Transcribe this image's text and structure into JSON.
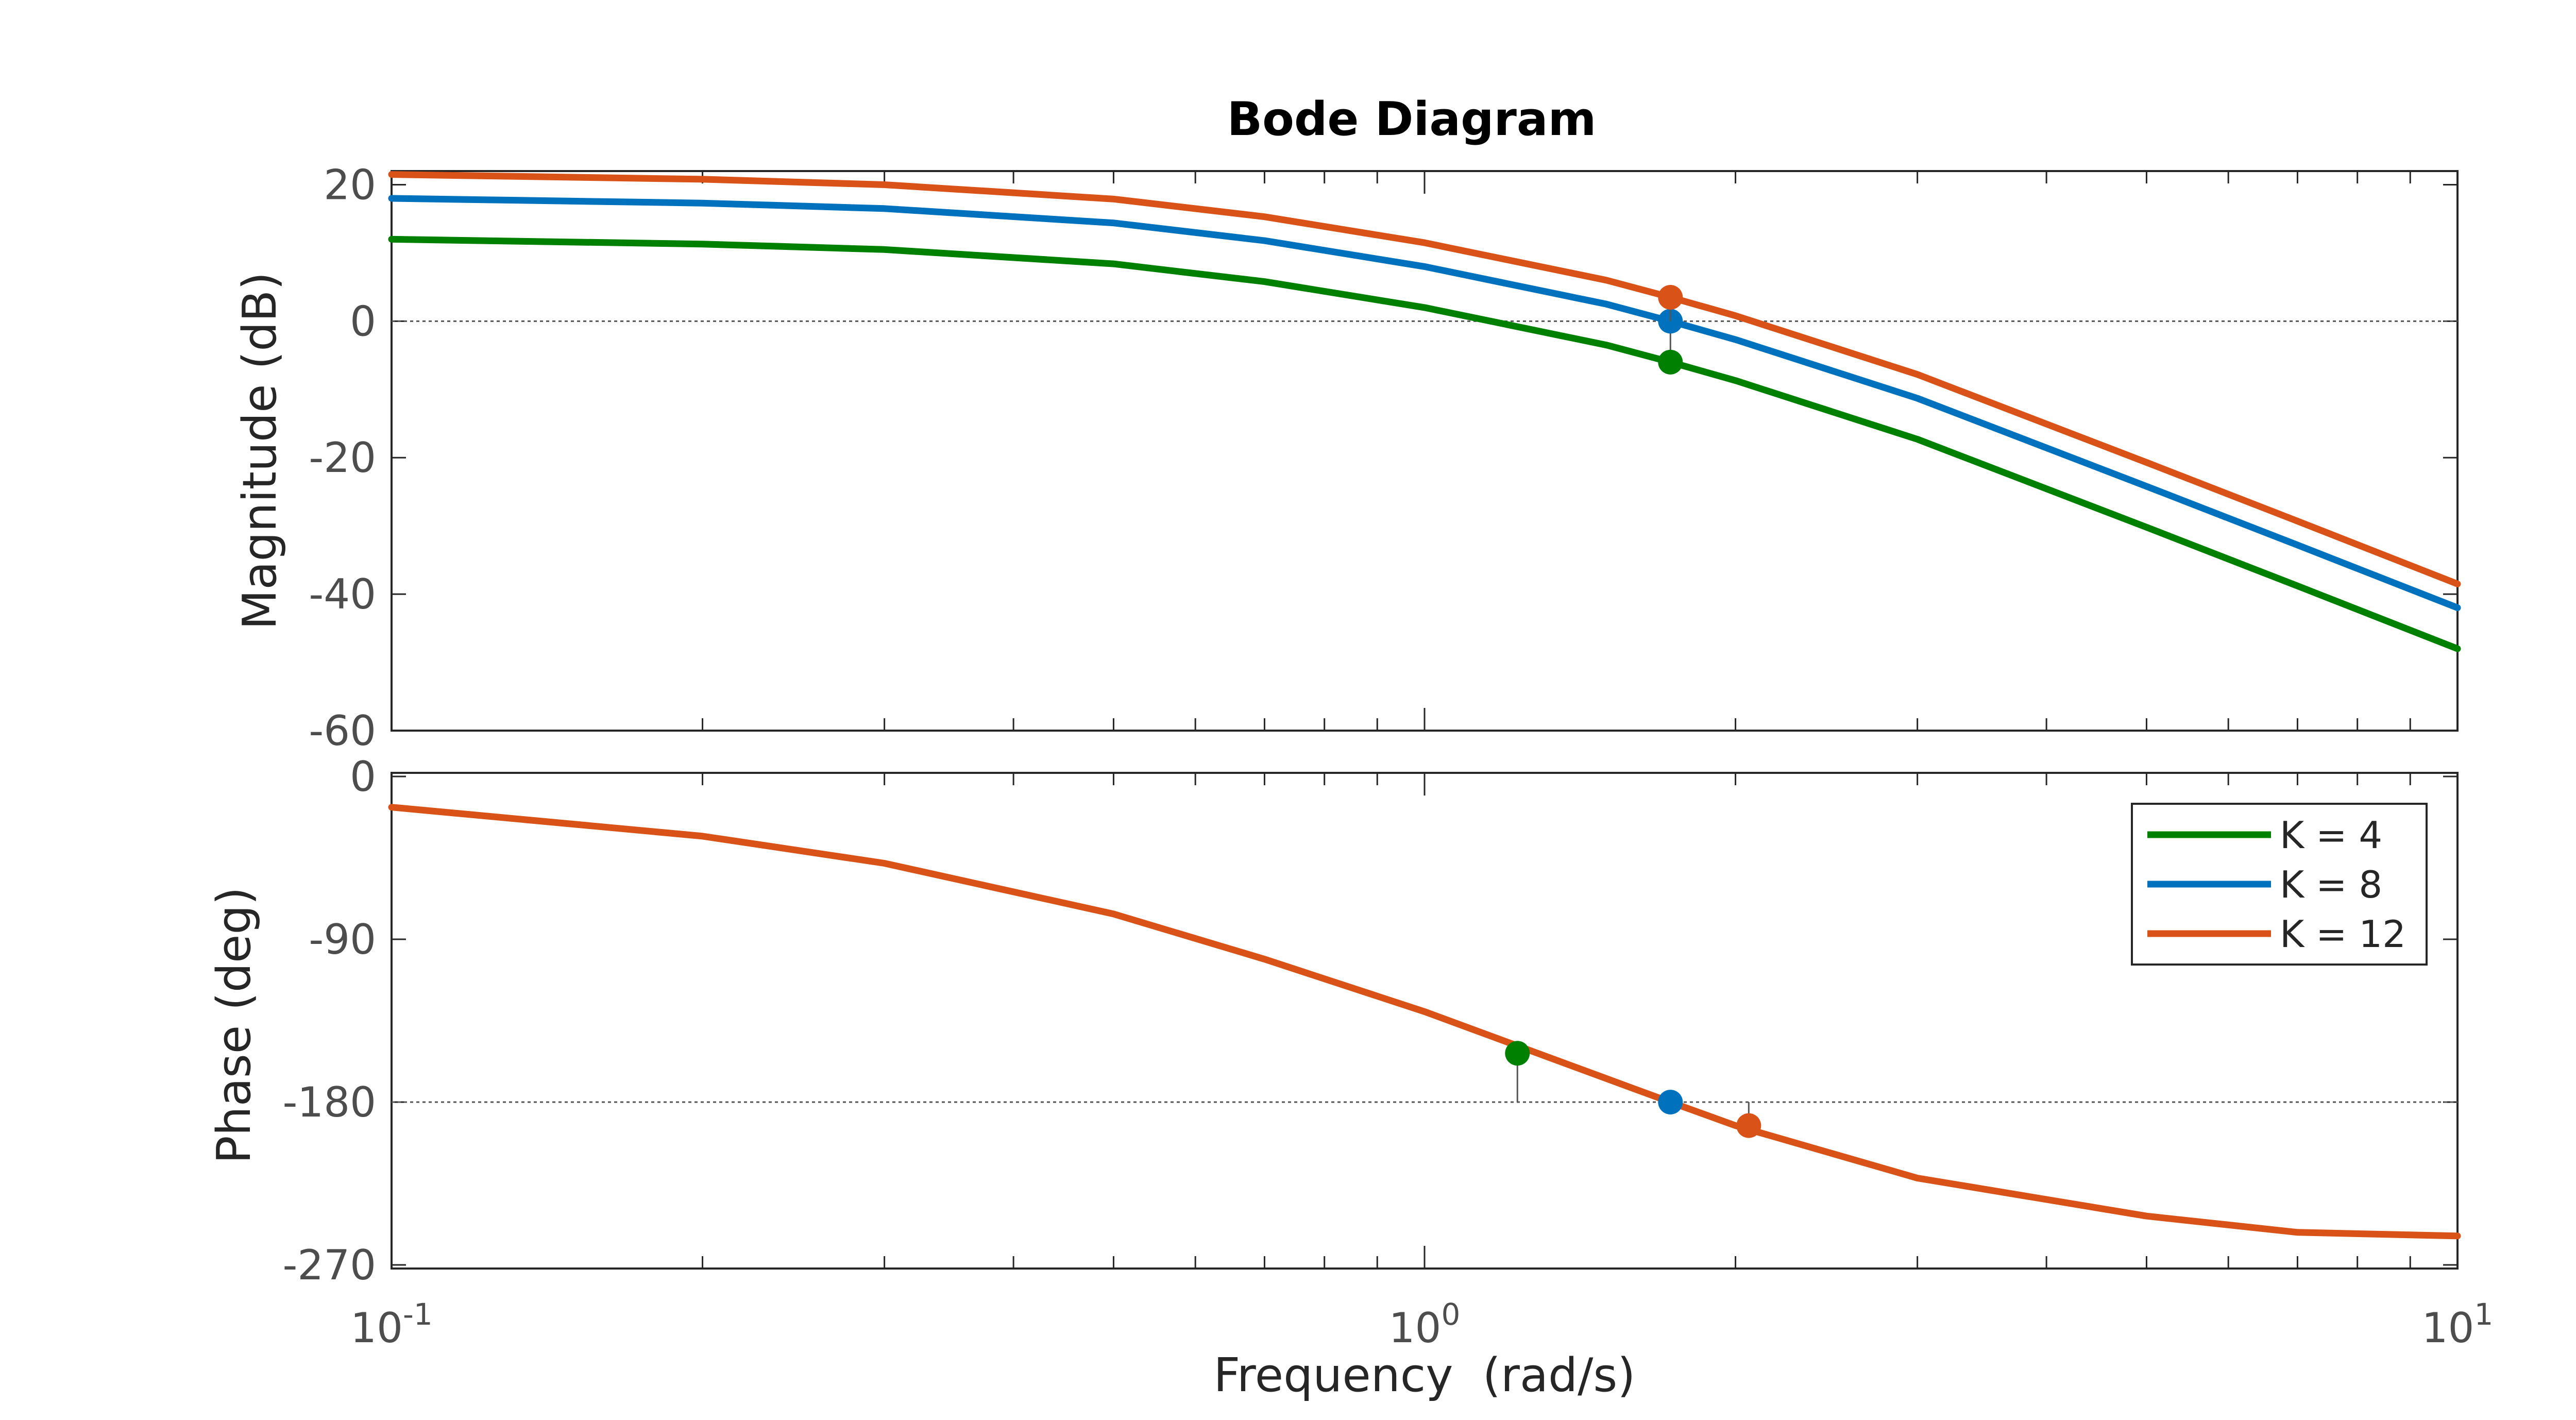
{
  "chart_data": {
    "type": "line",
    "title": "Bode Diagram",
    "xlabel": "Frequency  (rad/s)",
    "x_scale": "log",
    "xlim": [
      0.1,
      10
    ],
    "x_ticks": [
      {
        "value": 0.1,
        "base": "10",
        "exp": "-1"
      },
      {
        "value": 1,
        "base": "10",
        "exp": "0"
      },
      {
        "value": 10,
        "base": "10",
        "exp": "1"
      }
    ],
    "grid": false,
    "reference_lines": {
      "magnitude_db": 0,
      "phase_deg": -180
    },
    "legend": {
      "position": "top-right",
      "entries": [
        {
          "name": "K = 4",
          "color": "#008000"
        },
        {
          "name": "K = 8",
          "color": "#0072BD"
        },
        {
          "name": "K = 12",
          "color": "#D95319"
        }
      ]
    },
    "magnitude": {
      "ylabel": "Magnitude (dB)",
      "ylim": [
        -60,
        22
      ],
      "y_ticks": [
        20,
        0,
        -20,
        -40,
        -60
      ],
      "x": [
        0.1,
        0.2,
        0.3,
        0.5,
        0.7,
        1.0,
        1.5,
        1.73,
        2.0,
        3.0,
        5.0,
        7.0,
        10.0
      ],
      "series": [
        {
          "name": "K = 4",
          "color": "#008000",
          "values": [
            12.0,
            11.3,
            10.5,
            8.4,
            5.8,
            2.0,
            -3.5,
            -6.0,
            -8.7,
            -17.3,
            -30.2,
            -38.8,
            -48.0
          ]
        },
        {
          "name": "K = 8",
          "color": "#0072BD",
          "values": [
            18.0,
            17.3,
            16.5,
            14.4,
            11.8,
            8.0,
            2.5,
            0.0,
            -2.7,
            -11.3,
            -24.2,
            -32.8,
            -42.0
          ]
        },
        {
          "name": "K = 12",
          "color": "#D95319",
          "values": [
            21.5,
            20.8,
            20.0,
            17.9,
            15.3,
            11.5,
            6.0,
            3.5,
            0.8,
            -7.8,
            -20.7,
            -29.3,
            -38.5
          ]
        }
      ],
      "markers": [
        {
          "series": "K = 4",
          "x": 1.73,
          "y": -6.0
        },
        {
          "series": "K = 8",
          "x": 1.73,
          "y": 0.0
        },
        {
          "series": "K = 12",
          "x": 1.73,
          "y": 3.5
        }
      ]
    },
    "phase": {
      "ylabel": "Phase (deg)",
      "ylim": [
        -272,
        2
      ],
      "y_ticks": [
        0,
        -90,
        -180,
        -270
      ],
      "x": [
        0.1,
        0.2,
        0.3,
        0.5,
        0.7,
        1.0,
        1.5,
        1.73,
        2.0,
        3.0,
        5.0,
        7.0,
        10.0
      ],
      "series": [
        {
          "name": "K = 12",
          "color": "#D95319",
          "values": [
            -17.0,
            -33.0,
            -48.0,
            -76.0,
            -101.0,
            -130.0,
            -167.0,
            -180.0,
            -193.0,
            -222.0,
            -243.0,
            -252.0,
            -254.0
          ]
        }
      ],
      "markers": [
        {
          "series": "K = 4",
          "x": 1.23,
          "y": -153.0
        },
        {
          "series": "K = 8",
          "x": 1.73,
          "y": -180.0
        },
        {
          "series": "K = 12",
          "x": 2.06,
          "y": -193.0
        }
      ]
    }
  }
}
